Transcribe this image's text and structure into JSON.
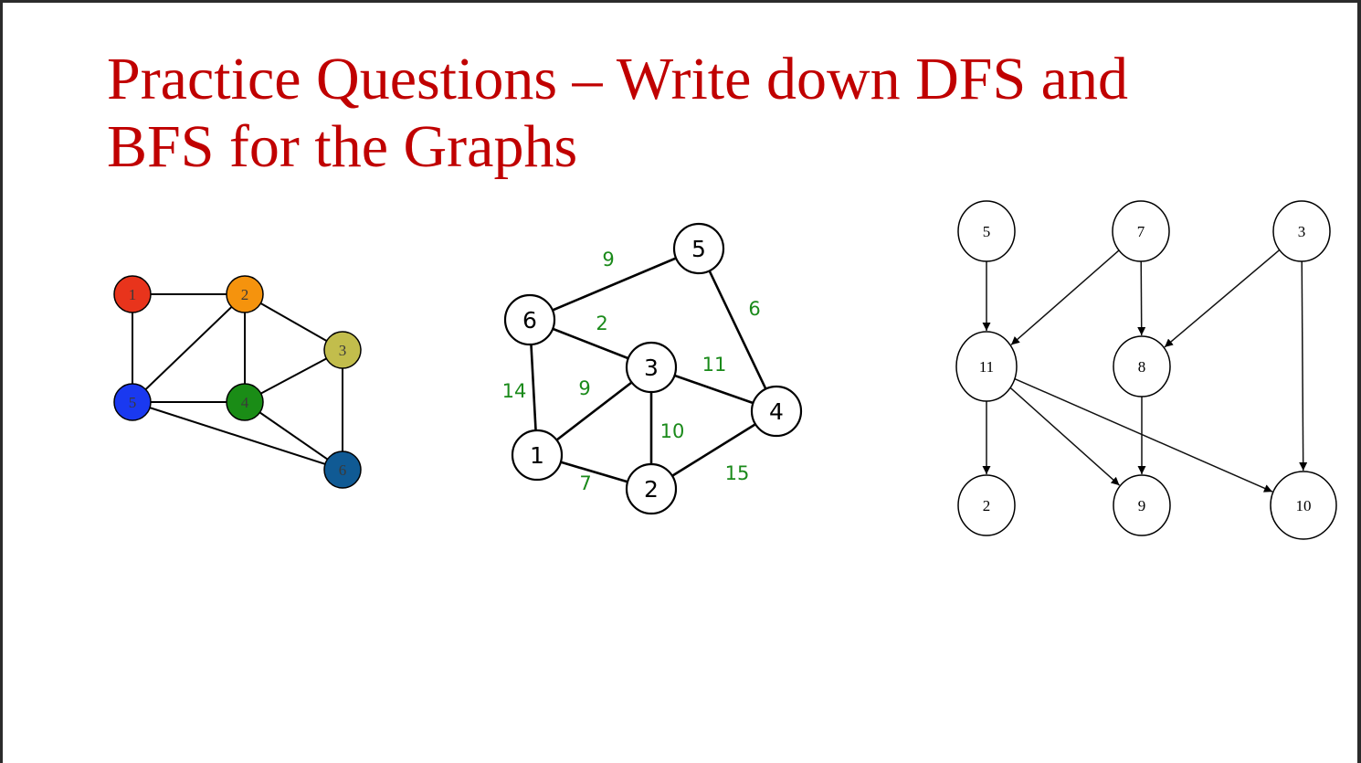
{
  "slide": {
    "title_line1": "Practice Questions – Write down DFS and",
    "title_line2": "BFS for the Graphs"
  },
  "graph1": {
    "nodes": [
      {
        "id": "1",
        "label": "1",
        "color": "#e8341c"
      },
      {
        "id": "2",
        "label": "2",
        "color": "#f5930d"
      },
      {
        "id": "3",
        "label": "3",
        "color": "#c2bd4c"
      },
      {
        "id": "4",
        "label": "4",
        "color": "#1a8c16"
      },
      {
        "id": "5",
        "label": "5",
        "color": "#1a39f0"
      },
      {
        "id": "6",
        "label": "6",
        "color": "#105a94"
      }
    ],
    "edges": [
      {
        "from": "1",
        "to": "2"
      },
      {
        "from": "1",
        "to": "5"
      },
      {
        "from": "2",
        "to": "5"
      },
      {
        "from": "2",
        "to": "4"
      },
      {
        "from": "2",
        "to": "3"
      },
      {
        "from": "5",
        "to": "4"
      },
      {
        "from": "3",
        "to": "4"
      },
      {
        "from": "3",
        "to": "6"
      },
      {
        "from": "4",
        "to": "6"
      },
      {
        "from": "5",
        "to": "6"
      }
    ]
  },
  "graph2": {
    "weight_color": "#1a8a1a",
    "nodes": [
      {
        "id": "5",
        "label": "5"
      },
      {
        "id": "6",
        "label": "6"
      },
      {
        "id": "3",
        "label": "3"
      },
      {
        "id": "4",
        "label": "4"
      },
      {
        "id": "1",
        "label": "1"
      },
      {
        "id": "2",
        "label": "2"
      }
    ],
    "edges": [
      {
        "from": "6",
        "to": "5",
        "weight": "9"
      },
      {
        "from": "5",
        "to": "4",
        "weight": "6"
      },
      {
        "from": "6",
        "to": "3",
        "weight": "2"
      },
      {
        "from": "6",
        "to": "1",
        "weight": "14"
      },
      {
        "from": "3",
        "to": "1",
        "weight": "9"
      },
      {
        "from": "3",
        "to": "4",
        "weight": "11"
      },
      {
        "from": "3",
        "to": "2",
        "weight": "10"
      },
      {
        "from": "1",
        "to": "2",
        "weight": "7"
      },
      {
        "from": "2",
        "to": "4",
        "weight": "15"
      }
    ]
  },
  "graph3": {
    "nodes": [
      {
        "id": "5",
        "label": "5"
      },
      {
        "id": "7",
        "label": "7"
      },
      {
        "id": "3",
        "label": "3"
      },
      {
        "id": "11",
        "label": "11"
      },
      {
        "id": "8",
        "label": "8"
      },
      {
        "id": "2",
        "label": "2"
      },
      {
        "id": "9",
        "label": "9"
      },
      {
        "id": "10",
        "label": "10"
      }
    ],
    "edges": [
      {
        "from": "5",
        "to": "11"
      },
      {
        "from": "7",
        "to": "11"
      },
      {
        "from": "7",
        "to": "8"
      },
      {
        "from": "3",
        "to": "8"
      },
      {
        "from": "3",
        "to": "10"
      },
      {
        "from": "11",
        "to": "2"
      },
      {
        "from": "11",
        "to": "9"
      },
      {
        "from": "11",
        "to": "10"
      },
      {
        "from": "8",
        "to": "9"
      }
    ]
  }
}
